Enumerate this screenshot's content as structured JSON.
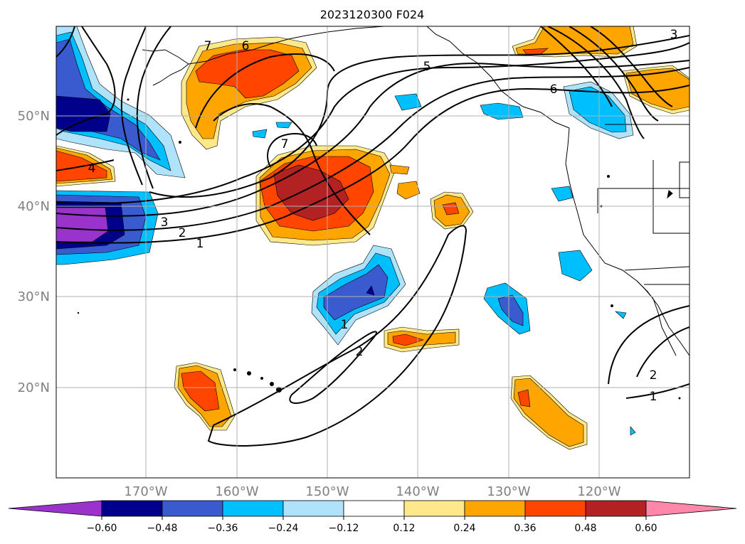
{
  "title": "2023120300 F024",
  "lat_labels": [
    "50°N",
    "40°N",
    "30°N",
    "20°N"
  ],
  "lon_labels": [
    "170°W",
    "160°W",
    "150°W",
    "140°W",
    "130°W",
    "120°W"
  ],
  "contour_labels": [
    "7",
    "6",
    "5",
    "6",
    "4",
    "3",
    "2",
    "1",
    "7",
    "1",
    "2",
    "2",
    "1",
    "3"
  ],
  "colorbar": {
    "ticks": [
      "−0.60",
      "−0.48",
      "−0.36",
      "−0.24",
      "−0.12",
      "0.12",
      "0.24",
      "0.36",
      "0.48",
      "0.60"
    ],
    "colors": [
      "#9933cc",
      "#00008b",
      "#3a5bd0",
      "#00bfff",
      "#aee3fb",
      "#ffffff",
      "#ffe88a",
      "#ffa500",
      "#ff4500",
      "#b22222",
      "#ff88aa"
    ]
  },
  "palette": {
    "grid": "#b0b0b0",
    "axis_label": "#808080",
    "contour": "#000000"
  }
}
